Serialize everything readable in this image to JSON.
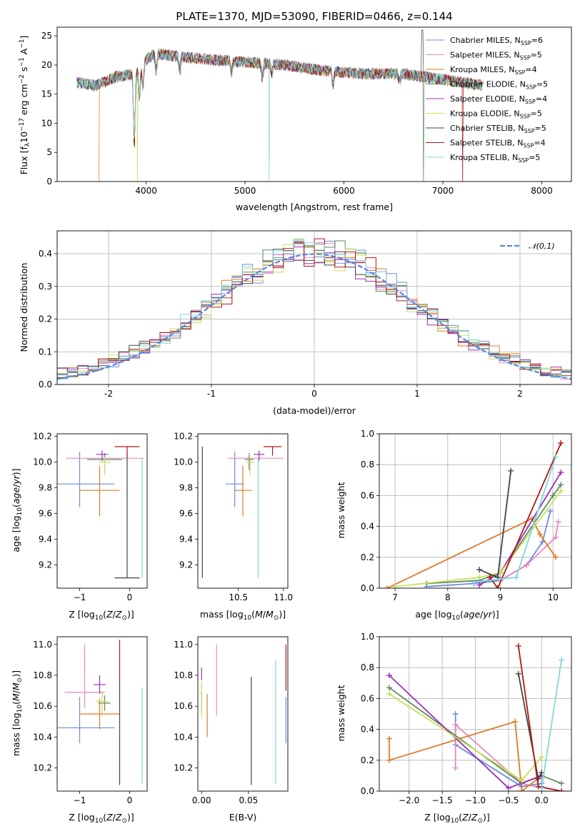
{
  "chart_data": [
    {
      "type": "line",
      "title": "PLATE=1370, MJD=53090, FIBERID=0466, z=0.144",
      "xlabel": "wavelength [Angstrom, rest frame]",
      "ylabel": "Flux [f_λ 10^-17 erg cm^-2 s^-1 A^-1]",
      "xlim": [
        3100,
        8300
      ],
      "ylim": [
        0,
        26.5
      ],
      "xticks": [
        4000,
        5000,
        6000,
        7000,
        8000
      ],
      "yticks": [
        0,
        5,
        10,
        15,
        20,
        25
      ],
      "grid": false,
      "legend_position": "top-right",
      "legend": [
        {
          "name": "Chabrier MILES, N_SSP=6",
          "color": "#6b8cdf"
        },
        {
          "name": "Salpeter MILES, N_SSP=5",
          "color": "#e887c0"
        },
        {
          "name": "Kroupa MILES, N_SSP=4",
          "color": "#e07a26"
        },
        {
          "name": "Chabrier ELODIE, N_SSP=5",
          "color": "#5d8a5d"
        },
        {
          "name": "Salpeter ELODIE, N_SSP=4",
          "color": "#9b30b8"
        },
        {
          "name": "Kroupa ELODIE, N_SSP=5",
          "color": "#c8e05a"
        },
        {
          "name": "Chabrier STELIB, N_SSP=5",
          "color": "#444444"
        },
        {
          "name": "Salpeter STELIB, N_SSP=4",
          "color": "#b01818"
        },
        {
          "name": "Kroupa STELIB, N_SSP=5",
          "color": "#7fd8dc"
        }
      ],
      "continuum": {
        "x": [
          3300,
          3500,
          3700,
          3900,
          4000,
          4100,
          4300,
          4600,
          5000,
          5400,
          5800,
          6200,
          6600,
          7000,
          7400
        ],
        "y": [
          17.0,
          16.5,
          18.0,
          18.5,
          21.0,
          22.0,
          21.5,
          21.0,
          20.5,
          20.0,
          19.0,
          18.5,
          18.5,
          17.5,
          16.5
        ]
      }
    },
    {
      "type": "line",
      "xlabel": "(data-model)/error",
      "ylabel": "Normed distribution",
      "xlim": [
        -2.5,
        2.5
      ],
      "ylim": [
        0,
        0.47
      ],
      "xticks": [
        -2,
        -1,
        0,
        1,
        2
      ],
      "yticks": [
        0.0,
        0.1,
        0.2,
        0.3,
        0.4
      ],
      "ytick_labels": [
        "0.0",
        "0.1",
        "0.2",
        "0.3",
        "0.4"
      ],
      "grid": true,
      "legend_position": "top-right",
      "legend": [
        {
          "name": "𝒩(0,1)",
          "color": "#5588dd"
        }
      ],
      "bin_width": 0.1
    },
    {
      "type": "scatter",
      "xlabel": "Z [log10(Z/Z⊙)]",
      "ylabel": "age [log10(age/yr)]",
      "xlim": [
        -1.45,
        0.35
      ],
      "ylim": [
        9.02,
        10.22
      ],
      "xticks": [
        -1,
        0
      ],
      "xtick_labels": [
        "−1",
        "0"
      ],
      "yticks": [
        9.2,
        9.4,
        9.6,
        9.8,
        10.0,
        10.2
      ],
      "ytick_labels": [
        "9.2",
        "9.4",
        "9.6",
        "9.8",
        "10.0",
        "10.2"
      ],
      "grid": false,
      "points": [
        {
          "x": -1.0,
          "xerr": 0.7,
          "y": 9.83,
          "yerr": [
            0.18,
            0.25
          ],
          "color": "#6b8cdf"
        },
        {
          "x": -0.5,
          "xerr": 0.78,
          "y": 10.03,
          "yerr": [
            0.0,
            0.0
          ],
          "color": "#e887c0"
        },
        {
          "x": -0.6,
          "xerr": 0.4,
          "y": 9.78,
          "yerr": [
            0.2,
            0.19
          ],
          "color": "#e07a26"
        },
        {
          "x": -0.5,
          "xerr": 0.35,
          "y": 10.02,
          "yerr": [
            0.08,
            0.05
          ],
          "color": "#5d8a5d"
        },
        {
          "x": -0.55,
          "xerr": 0.12,
          "y": 10.06,
          "yerr": [
            0.05,
            0.03
          ],
          "color": "#9b30b8"
        },
        {
          "x": -0.5,
          "xerr": 0.12,
          "y": 10.0,
          "yerr": [
            0.1,
            0.04
          ],
          "color": "#c8e05a"
        },
        {
          "x": -0.05,
          "xerr": 0.25,
          "y": 9.1,
          "yerr": [
            0.0,
            0.97
          ],
          "color": "#444444"
        },
        {
          "x": -0.05,
          "xerr": 0.25,
          "y": 10.12,
          "yerr": [
            0.07,
            0.0
          ],
          "color": "#b01818"
        },
        {
          "x": 0.25,
          "xerr": 0.0,
          "y": 10.03,
          "yerr": [
            0.93,
            0.0
          ],
          "color": "#7fd8dc"
        }
      ]
    },
    {
      "type": "scatter",
      "xlabel": "mass [log10(M/M⊙)]",
      "ylabel": "",
      "xlim": [
        10.05,
        11.05
      ],
      "ylim": [
        9.02,
        10.22
      ],
      "xticks": [
        10.5,
        11.0
      ],
      "xtick_labels": [
        "10.5",
        "11.0"
      ],
      "yticks": [
        9.2,
        9.4,
        9.6,
        9.8,
        10.0,
        10.2
      ],
      "ytick_labels": [
        "9.2",
        "9.4",
        "9.6",
        "9.8",
        "10.0",
        "10.2"
      ],
      "grid": false,
      "points": [
        {
          "x": 10.46,
          "xerr": 0.1,
          "y": 9.83,
          "yerr": [
            0.18,
            0.25
          ],
          "color": "#6b8cdf"
        },
        {
          "x": 10.69,
          "xerr": 0.31,
          "y": 10.03,
          "yerr": [
            0.0,
            0.0
          ],
          "color": "#e887c0"
        },
        {
          "x": 10.55,
          "xerr": 0.1,
          "y": 9.78,
          "yerr": [
            0.2,
            0.19
          ],
          "color": "#e07a26"
        },
        {
          "x": 10.62,
          "xerr": 0.05,
          "y": 10.02,
          "yerr": [
            0.08,
            0.05
          ],
          "color": "#5d8a5d"
        },
        {
          "x": 10.73,
          "xerr": 0.06,
          "y": 10.06,
          "yerr": [
            0.05,
            0.03
          ],
          "color": "#9b30b8"
        },
        {
          "x": 10.63,
          "xerr": 0.05,
          "y": 10.0,
          "yerr": [
            0.1,
            0.04
          ],
          "color": "#c8e05a"
        },
        {
          "x": 10.1,
          "xerr": 0.0,
          "y": 9.1,
          "yerr": [
            0.0,
            1.02
          ],
          "color": "#444444"
        },
        {
          "x": 10.88,
          "xerr": 0.1,
          "y": 10.12,
          "yerr": [
            0.07,
            0.0
          ],
          "color": "#b01818"
        },
        {
          "x": 10.72,
          "xerr": 0.0,
          "y": 10.02,
          "yerr": [
            0.92,
            0.0
          ],
          "color": "#7fd8dc"
        }
      ]
    },
    {
      "type": "line",
      "xlabel": "age [log10(age/yr)]",
      "ylabel": "mass weight",
      "xlim": [
        6.7,
        10.35
      ],
      "ylim": [
        0,
        1.0
      ],
      "xticks": [
        7,
        8,
        9,
        10
      ],
      "yticks": [
        0.0,
        0.2,
        0.4,
        0.6,
        0.8,
        1.0
      ],
      "ytick_labels": [
        "0.0",
        "0.2",
        "0.4",
        "0.6",
        "0.8",
        "1.0"
      ],
      "grid": true,
      "series": [
        {
          "color": "#6b8cdf",
          "points": [
            [
              7.6,
              0.01
            ],
            [
              8.5,
              0.03
            ],
            [
              9.0,
              0.05
            ],
            [
              9.5,
              0.15
            ],
            [
              9.8,
              0.3
            ],
            [
              9.95,
              0.5
            ]
          ]
        },
        {
          "color": "#e887c0",
          "points": [
            [
              9.0,
              0.05
            ],
            [
              9.5,
              0.15
            ],
            [
              10.05,
              0.33
            ],
            [
              10.1,
              0.43
            ]
          ]
        },
        {
          "color": "#e07a26",
          "points": [
            [
              6.85,
              0.0
            ],
            [
              9.6,
              0.45
            ],
            [
              9.75,
              0.35
            ],
            [
              10.05,
              0.2
            ]
          ]
        },
        {
          "color": "#5d8a5d",
          "points": [
            [
              7.6,
              0.03
            ],
            [
              8.6,
              0.05
            ],
            [
              9.0,
              0.1
            ],
            [
              10.0,
              0.6
            ],
            [
              10.15,
              0.67
            ]
          ]
        },
        {
          "color": "#9b30b8",
          "points": [
            [
              8.6,
              0.02
            ],
            [
              9.0,
              0.1
            ],
            [
              10.15,
              0.75
            ]
          ]
        },
        {
          "color": "#c8e05a",
          "points": [
            [
              7.0,
              0.01
            ],
            [
              8.6,
              0.07
            ],
            [
              9.0,
              0.1
            ],
            [
              10.15,
              0.63
            ]
          ]
        },
        {
          "color": "#444444",
          "points": [
            [
              8.6,
              0.12
            ],
            [
              8.95,
              0.07
            ],
            [
              9.2,
              0.76
            ]
          ]
        },
        {
          "color": "#b01818",
          "points": [
            [
              8.8,
              0.07
            ],
            [
              8.95,
              0.0
            ],
            [
              10.15,
              0.94
            ]
          ]
        },
        {
          "color": "#7fd8dc",
          "points": [
            [
              8.5,
              0.04
            ],
            [
              9.3,
              0.07
            ],
            [
              10.05,
              0.85
            ]
          ]
        }
      ]
    },
    {
      "type": "scatter",
      "xlabel": "Z [log10(Z/Z⊙)]",
      "ylabel": "mass [log10(M/M⊙)]",
      "xlim": [
        -1.45,
        0.35
      ],
      "ylim": [
        10.05,
        11.05
      ],
      "xticks": [
        -1,
        0
      ],
      "xtick_labels": [
        "−1",
        "0"
      ],
      "yticks": [
        10.2,
        10.4,
        10.6,
        10.8,
        11.0
      ],
      "ytick_labels": [
        "10.2",
        "10.4",
        "10.6",
        "10.8",
        "11.0"
      ],
      "grid": false,
      "points": [
        {
          "x": -1.0,
          "xerr": 0.7,
          "y": 10.46,
          "yerr": [
            0.1,
            0.2
          ],
          "color": "#6b8cdf"
        },
        {
          "x": -0.9,
          "xerr": 0.4,
          "y": 10.69,
          "yerr": [
            0.1,
            0.31
          ],
          "color": "#e887c0"
        },
        {
          "x": -0.6,
          "xerr": 0.4,
          "y": 10.55,
          "yerr": [
            0.1,
            0.1
          ],
          "color": "#e07a26"
        },
        {
          "x": -0.5,
          "xerr": 0.12,
          "y": 10.62,
          "yerr": [
            0.05,
            0.05
          ],
          "color": "#5d8a5d"
        },
        {
          "x": -0.6,
          "xerr": 0.12,
          "y": 10.74,
          "yerr": [
            0.06,
            0.06
          ],
          "color": "#9b30b8"
        },
        {
          "x": -0.55,
          "xerr": 0.12,
          "y": 10.63,
          "yerr": [
            0.1,
            0.07
          ],
          "color": "#c8e05a"
        },
        {
          "x": -0.2,
          "xerr": 0.0,
          "y": 10.09,
          "yerr": [
            0.0,
            0.7
          ],
          "color": "#444444"
        },
        {
          "x": -0.2,
          "xerr": 0.0,
          "y": 10.88,
          "yerr": [
            0.1,
            0.15
          ],
          "color": "#b01818"
        },
        {
          "x": 0.25,
          "xerr": 0.0,
          "y": 10.72,
          "yerr": [
            0.62,
            0.0
          ],
          "color": "#7fd8dc"
        }
      ]
    },
    {
      "type": "scatter",
      "xlabel": "E(B-V)",
      "ylabel": "",
      "xlim": [
        -0.004,
        0.092
      ],
      "ylim": [
        10.05,
        11.05
      ],
      "xticks": [
        0.0,
        0.05
      ],
      "xtick_labels": [
        "0.00",
        "0.05"
      ],
      "yticks": [
        10.2,
        10.4,
        10.6,
        10.8,
        11.0
      ],
      "ytick_labels": [
        "10.2",
        "10.4",
        "10.6",
        "10.8",
        "11.0"
      ],
      "grid": false,
      "points": [
        {
          "x": 0.09,
          "xerr": 0.0,
          "y": 10.46,
          "yerr": [
            0.1,
            0.2
          ],
          "color": "#6b8cdf"
        },
        {
          "x": 0.016,
          "xerr": 0.0,
          "y": 10.69,
          "yerr": [
            0.15,
            0.31
          ],
          "color": "#e887c0"
        },
        {
          "x": 0.006,
          "xerr": 0.0,
          "y": 10.55,
          "yerr": [
            0.15,
            0.13
          ],
          "color": "#e07a26"
        },
        {
          "x": 0.0,
          "xerr": 0.0,
          "y": 10.62,
          "yerr": [
            0.05,
            0.08
          ],
          "color": "#5d8a5d"
        },
        {
          "x": 0.0,
          "xerr": 0.0,
          "y": 10.77,
          "yerr": [
            0.0,
            0.08
          ],
          "color": "#9b30b8"
        },
        {
          "x": 0.0,
          "xerr": 0.0,
          "y": 10.63,
          "yerr": [
            0.1,
            0.13
          ],
          "color": "#c8e05a"
        },
        {
          "x": 0.053,
          "xerr": 0.0,
          "y": 10.09,
          "yerr": [
            0.0,
            0.7
          ],
          "color": "#444444"
        },
        {
          "x": 0.09,
          "xerr": 0.0,
          "y": 10.85,
          "yerr": [
            0.15,
            0.15
          ],
          "color": "#b01818"
        },
        {
          "x": 0.079,
          "xerr": 0.0,
          "y": 10.72,
          "yerr": [
            0.62,
            0.18
          ],
          "color": "#7fd8dc"
        }
      ]
    },
    {
      "type": "line",
      "xlabel": "Z [log10(Z/Z⊙)]",
      "ylabel": "mass weight",
      "xlim": [
        -2.45,
        0.45
      ],
      "ylim": [
        0,
        1.0
      ],
      "xticks": [
        -2.0,
        -1.5,
        -1.0,
        -0.5,
        0.0
      ],
      "xtick_labels": [
        "−2.0",
        "−1.5",
        "−1.0",
        "−0.5",
        "0.0"
      ],
      "yticks": [
        0.0,
        0.2,
        0.4,
        0.6,
        0.8,
        1.0
      ],
      "ytick_labels": [
        "0.0",
        "0.2",
        "0.4",
        "0.6",
        "0.8",
        "1.0"
      ],
      "grid": true,
      "series": [
        {
          "color": "#6b8cdf",
          "points": [
            [
              -1.3,
              0.5
            ],
            [
              -1.3,
              0.3
            ],
            [
              -0.3,
              0.03
            ],
            [
              0.0,
              0.05
            ],
            [
              0.0,
              0.03
            ]
          ]
        },
        {
          "color": "#e887c0",
          "points": [
            [
              -1.3,
              0.15
            ],
            [
              -1.3,
              0.43
            ],
            [
              -0.3,
              0.05
            ],
            [
              0.0,
              0.02
            ]
          ]
        },
        {
          "color": "#e07a26",
          "points": [
            [
              -2.3,
              0.34
            ],
            [
              -2.3,
              0.2
            ],
            [
              -0.4,
              0.45
            ],
            [
              -0.3,
              0.0
            ],
            [
              0.0,
              0.1
            ]
          ]
        },
        {
          "color": "#5d8a5d",
          "points": [
            [
              -2.3,
              0.67
            ],
            [
              -0.3,
              0.05
            ],
            [
              0.0,
              0.1
            ],
            [
              0.3,
              0.05
            ]
          ]
        },
        {
          "color": "#9b30b8",
          "points": [
            [
              -2.3,
              0.75
            ],
            [
              -0.5,
              0.02
            ],
            [
              0.0,
              0.1
            ]
          ]
        },
        {
          "color": "#c8e05a",
          "points": [
            [
              -2.3,
              0.63
            ],
            [
              -0.3,
              0.07
            ],
            [
              0.0,
              0.22
            ]
          ]
        },
        {
          "color": "#444444",
          "points": [
            [
              -0.35,
              0.76
            ],
            [
              -0.05,
              0.08
            ],
            [
              0.0,
              0.12
            ]
          ]
        },
        {
          "color": "#b01818",
          "points": [
            [
              -0.35,
              0.94
            ],
            [
              -0.05,
              0.03
            ],
            [
              0.3,
              0.0
            ]
          ]
        },
        {
          "color": "#7fd8dc",
          "points": [
            [
              0.0,
              0.02
            ],
            [
              0.3,
              0.85
            ]
          ]
        }
      ]
    }
  ]
}
